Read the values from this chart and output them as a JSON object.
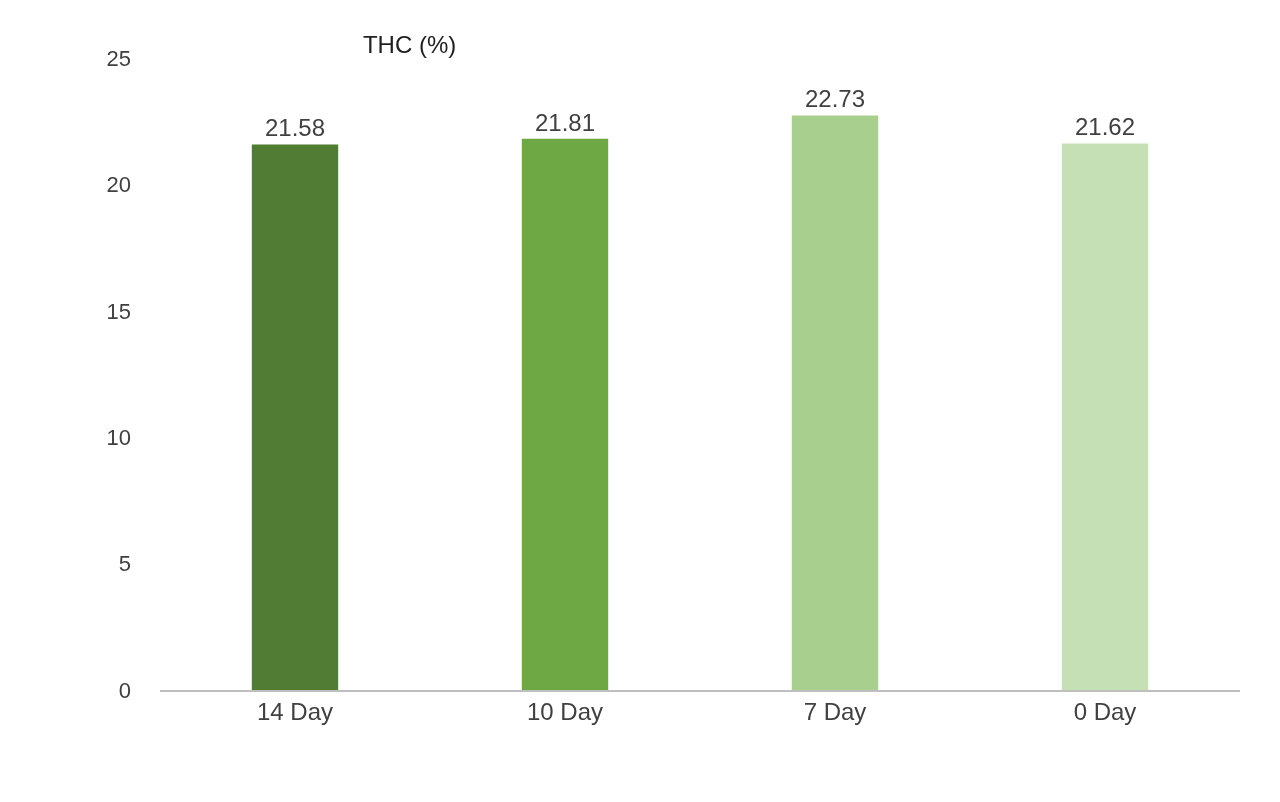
{
  "chart_data": {
    "type": "bar",
    "title": "THC (%)",
    "categories": [
      "14 Day",
      "10 Day",
      "7 Day",
      "0 Day"
    ],
    "values": [
      21.58,
      21.81,
      22.73,
      21.62
    ],
    "colors": [
      "#507d33",
      "#6ea845",
      "#a9cf8f",
      "#c5e0b5"
    ],
    "ylim": [
      0,
      25
    ],
    "yticks": [
      0,
      5,
      10,
      15,
      20,
      25
    ],
    "grid": false,
    "data_labels": true
  }
}
